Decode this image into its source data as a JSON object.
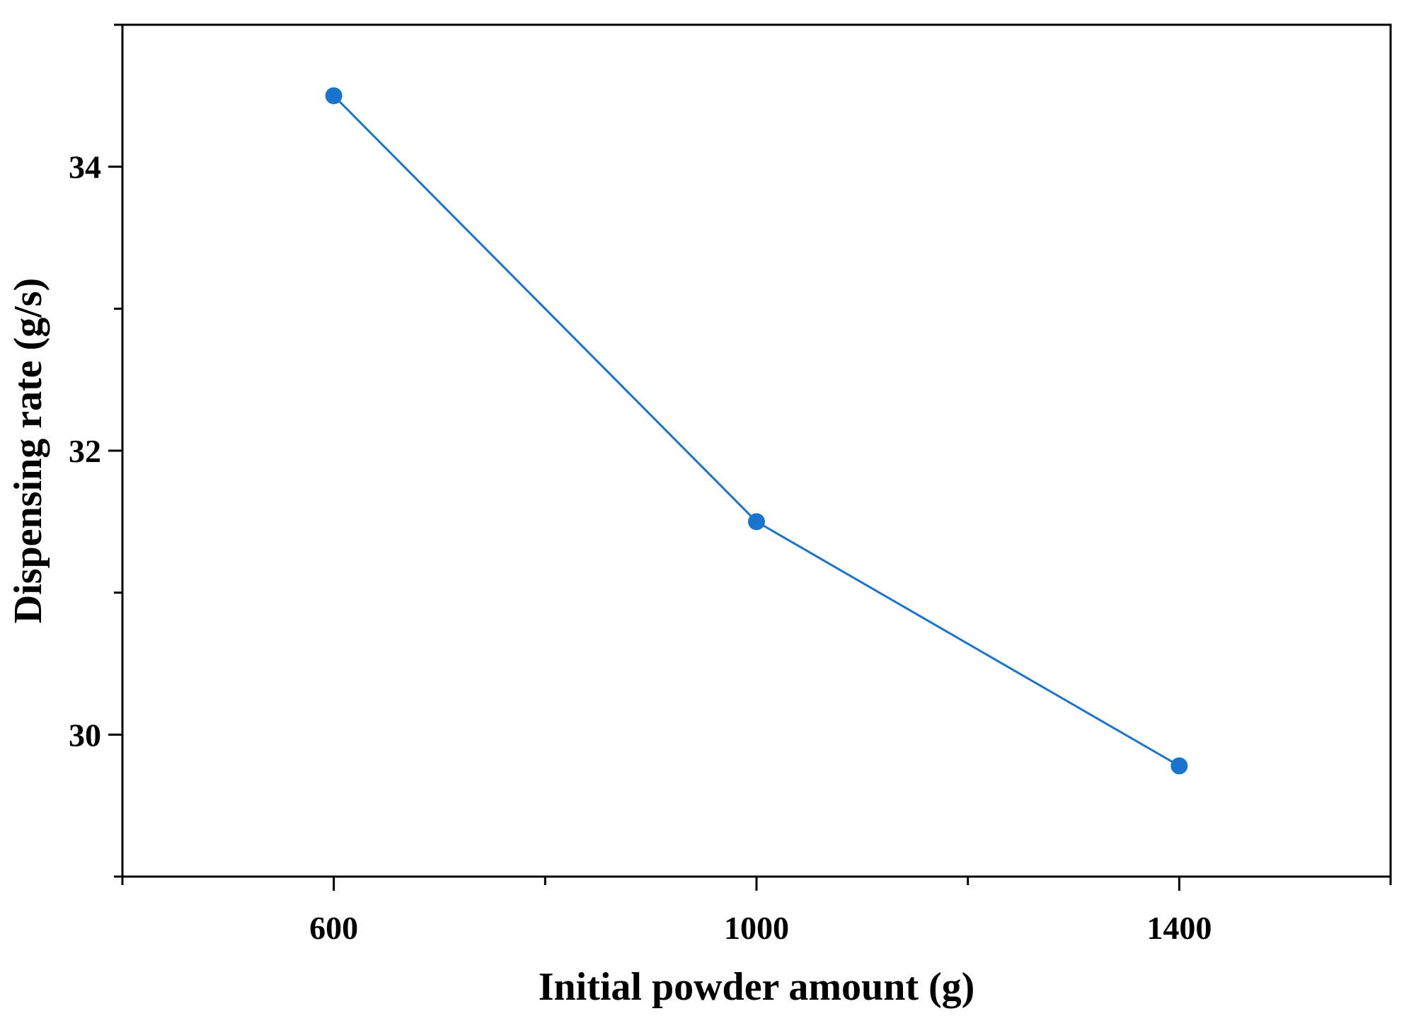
{
  "chart_data": {
    "type": "line",
    "title": "",
    "xlabel": "Initial powder amount (g)",
    "ylabel": "Dispensing rate (g/s)",
    "xlim": [
      400,
      1600
    ],
    "ylim": [
      29,
      35
    ],
    "x_ticks": [
      600,
      1000,
      1400
    ],
    "x_minor_ticks": [
      400,
      800,
      1200,
      1600
    ],
    "y_ticks": [
      30,
      32,
      34
    ],
    "y_minor_ticks": [
      29,
      31,
      33,
      35
    ],
    "x_tick_labels": [
      "600",
      "1000",
      "1400"
    ],
    "y_tick_labels": [
      "30",
      "32",
      "34"
    ],
    "grid": false,
    "legend": "none",
    "series": [
      {
        "color": "#1874cd",
        "x": [
          600,
          1000,
          1400
        ],
        "y": [
          34.5,
          31.5,
          29.78
        ]
      }
    ]
  }
}
